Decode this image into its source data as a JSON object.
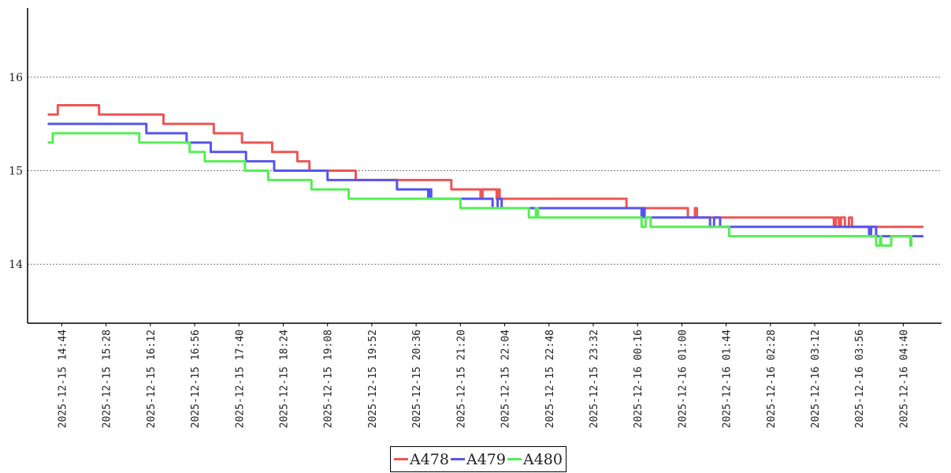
{
  "chart_data": {
    "type": "line",
    "title": "",
    "xlabel": "",
    "ylabel": "",
    "x_unit": "minutes since 2025-12-15 00:00",
    "xlim": [
      850,
      1758
    ],
    "ylim": [
      13.37,
      16.74
    ],
    "grid": "horizontal dotted",
    "legend_position": "bottom-center",
    "yticks": [
      {
        "value": 14,
        "label": "14"
      },
      {
        "value": 15,
        "label": "15"
      },
      {
        "value": 16,
        "label": "16"
      }
    ],
    "xticks": [
      {
        "value": 884,
        "label": "2025-12-15 14:44"
      },
      {
        "value": 928,
        "label": "2025-12-15 15:28"
      },
      {
        "value": 972,
        "label": "2025-12-15 16:12"
      },
      {
        "value": 1016,
        "label": "2025-12-15 16:56"
      },
      {
        "value": 1060,
        "label": "2025-12-15 17:40"
      },
      {
        "value": 1104,
        "label": "2025-12-15 18:24"
      },
      {
        "value": 1148,
        "label": "2025-12-15 19:08"
      },
      {
        "value": 1192,
        "label": "2025-12-15 19:52"
      },
      {
        "value": 1236,
        "label": "2025-12-15 20:36"
      },
      {
        "value": 1280,
        "label": "2025-12-15 21:20"
      },
      {
        "value": 1324,
        "label": "2025-12-15 22:04"
      },
      {
        "value": 1368,
        "label": "2025-12-15 22:48"
      },
      {
        "value": 1412,
        "label": "2025-12-15 23:32"
      },
      {
        "value": 1456,
        "label": "2025-12-16 00:16"
      },
      {
        "value": 1500,
        "label": "2025-12-16 01:00"
      },
      {
        "value": 1544,
        "label": "2025-12-16 01:44"
      },
      {
        "value": 1588,
        "label": "2025-12-16 02:28"
      },
      {
        "value": 1632,
        "label": "2025-12-16 03:12"
      },
      {
        "value": 1676,
        "label": "2025-12-16 03:56"
      },
      {
        "value": 1720,
        "label": "2025-12-16 04:40"
      }
    ],
    "series": [
      {
        "name": "A478",
        "color": "#ee5555",
        "end": 1740,
        "points": [
          [
            870,
            15.6
          ],
          [
            880,
            15.7
          ],
          [
            921,
            15.6
          ],
          [
            985,
            15.5
          ],
          [
            1035,
            15.4
          ],
          [
            1063,
            15.3
          ],
          [
            1093,
            15.2
          ],
          [
            1118,
            15.1
          ],
          [
            1130,
            15.0
          ],
          [
            1176,
            14.9
          ],
          [
            1271,
            14.8
          ],
          [
            1300,
            14.7
          ],
          [
            1302,
            14.8
          ],
          [
            1316,
            14.7
          ],
          [
            1317,
            14.8
          ],
          [
            1319,
            14.7
          ],
          [
            1445,
            14.6
          ],
          [
            1506,
            14.5
          ],
          [
            1513,
            14.6
          ],
          [
            1515,
            14.5
          ],
          [
            1651,
            14.4
          ],
          [
            1653,
            14.5
          ],
          [
            1656,
            14.4
          ],
          [
            1658,
            14.5
          ],
          [
            1662,
            14.4
          ],
          [
            1666,
            14.5
          ],
          [
            1669,
            14.4
          ]
        ]
      },
      {
        "name": "A479",
        "color": "#5555ee",
        "end": 1740,
        "points": [
          [
            870,
            15.5
          ],
          [
            968,
            15.4
          ],
          [
            1008,
            15.3
          ],
          [
            1032,
            15.2
          ],
          [
            1067,
            15.1
          ],
          [
            1095,
            15.0
          ],
          [
            1148,
            14.9
          ],
          [
            1217,
            14.8
          ],
          [
            1248,
            14.7
          ],
          [
            1249,
            14.8
          ],
          [
            1251,
            14.7
          ],
          [
            1312,
            14.6
          ],
          [
            1317,
            14.7
          ],
          [
            1321,
            14.6
          ],
          [
            1460,
            14.5
          ],
          [
            1461,
            14.6
          ],
          [
            1463,
            14.5
          ],
          [
            1528,
            14.4
          ],
          [
            1532,
            14.5
          ],
          [
            1538,
            14.4
          ],
          [
            1686,
            14.3
          ],
          [
            1688,
            14.4
          ],
          [
            1693,
            14.3
          ]
        ]
      },
      {
        "name": "A480",
        "color": "#55ee55",
        "end": 1729,
        "points": [
          [
            870,
            15.3
          ],
          [
            875,
            15.4
          ],
          [
            961,
            15.3
          ],
          [
            1011,
            15.2
          ],
          [
            1026,
            15.1
          ],
          [
            1066,
            15.0
          ],
          [
            1089,
            14.9
          ],
          [
            1132,
            14.8
          ],
          [
            1169,
            14.7
          ],
          [
            1280,
            14.6
          ],
          [
            1348,
            14.5
          ],
          [
            1355,
            14.6
          ],
          [
            1357,
            14.5
          ],
          [
            1460,
            14.4
          ],
          [
            1464,
            14.5
          ],
          [
            1469,
            14.4
          ],
          [
            1547,
            14.3
          ],
          [
            1693,
            14.2
          ],
          [
            1697,
            14.3
          ],
          [
            1698,
            14.2
          ],
          [
            1708,
            14.3
          ],
          [
            1727,
            14.2
          ],
          [
            1728,
            14.3
          ]
        ]
      }
    ]
  }
}
